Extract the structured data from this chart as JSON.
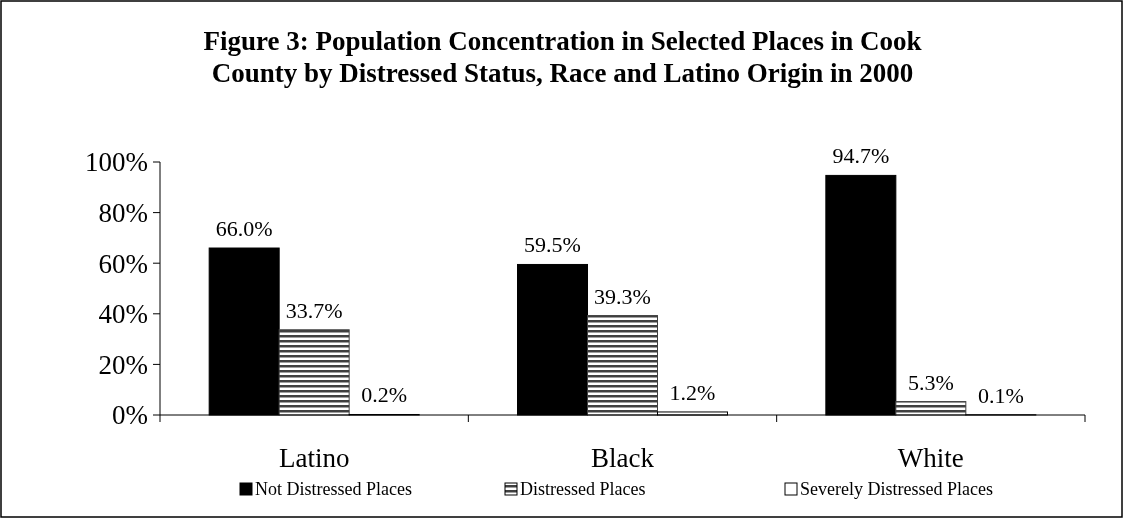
{
  "chart_data": {
    "type": "bar",
    "title": "Figure 3: Population Concentration in Selected Places in Cook County by Distressed Status, Race and Latino Origin in 2000",
    "categories": [
      "Latino",
      "Black",
      "White"
    ],
    "series": [
      {
        "name": "Not Distressed Places",
        "color": "#000000",
        "values": [
          66.0,
          59.5,
          94.7
        ],
        "value_labels": [
          "66.0%",
          "59.5%",
          "94.7%"
        ]
      },
      {
        "name": "Distressed Places",
        "color": "#404040",
        "values": [
          33.7,
          39.3,
          5.3
        ],
        "value_labels": [
          "33.7%",
          "39.3%",
          "5.3%"
        ]
      },
      {
        "name": "Severely Distressed Places",
        "color": "#ffffff",
        "values": [
          0.2,
          1.2,
          0.1
        ],
        "value_labels": [
          "0.2%",
          "1.2%",
          "0.1%"
        ]
      }
    ],
    "ylim": [
      0,
      100
    ],
    "yticks": [
      {
        "value": 0,
        "label": "0%"
      },
      {
        "value": 20,
        "label": "20%"
      },
      {
        "value": 40,
        "label": "40%"
      },
      {
        "value": 60,
        "label": "60%"
      },
      {
        "value": 80,
        "label": "80%"
      },
      {
        "value": 100,
        "label": "100%"
      }
    ],
    "grid": false,
    "legend": "bottom"
  }
}
